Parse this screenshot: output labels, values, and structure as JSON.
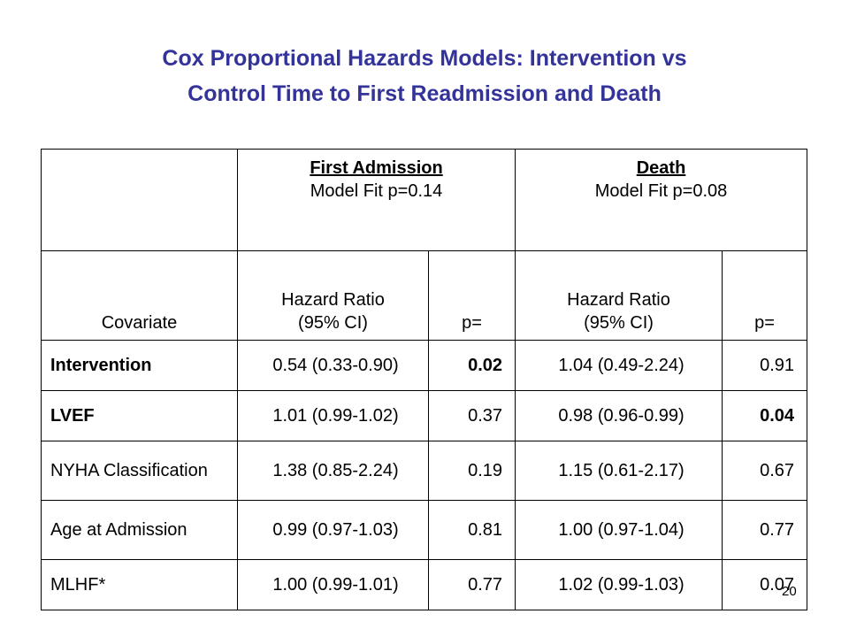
{
  "title_line1": "Cox Proportional Hazards Models: Intervention vs",
  "title_line2": "Control Time to First Readmission and Death",
  "groups": {
    "first_admission": {
      "title": "First Admission",
      "fit": "Model Fit p=0.14"
    },
    "death": {
      "title": "Death",
      "fit": "Model Fit p=0.08"
    }
  },
  "subheaders": {
    "covariate": "Covariate",
    "hr_line1": "Hazard Ratio",
    "hr_line2": "(95% CI)",
    "p": "p="
  },
  "rows": [
    {
      "covariate": "Intervention",
      "hr1": "0.54 (0.33-0.90)",
      "p1": "0.02",
      "hr2": "1.04 (0.49-2.24)",
      "p2": "0.91"
    },
    {
      "covariate": "LVEF",
      "hr1": "1.01 (0.99-1.02)",
      "p1": "0.37",
      "hr2": "0.98 (0.96-0.99)",
      "p2": "0.04"
    },
    {
      "covariate": "NYHA Classification",
      "hr1": "1.38 (0.85-2.24)",
      "p1": "0.19",
      "hr2": "1.15 (0.61-2.17)",
      "p2": "0.67"
    },
    {
      "covariate": "Age at Admission",
      "hr1": "0.99 (0.97-1.03)",
      "p1": "0.81",
      "hr2": "1.00 (0.97-1.04)",
      "p2": "0.77"
    },
    {
      "covariate": "MLHF*",
      "hr1": "1.00 (0.99-1.01)",
      "p1": "0.77",
      "hr2": "1.02 (0.99-1.03)",
      "p2": "0.07"
    }
  ],
  "page_number": "20",
  "colors": {
    "title": "#333399"
  }
}
